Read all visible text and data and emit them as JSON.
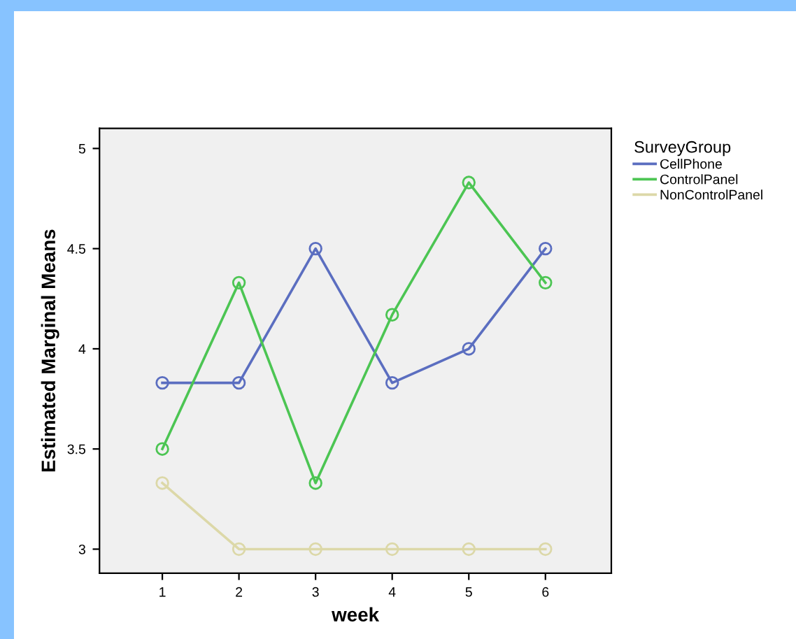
{
  "chart_data": {
    "type": "line",
    "xlabel": "week",
    "ylabel": "Estimated Marginal Means",
    "legend_title": "SurveyGroup",
    "x": [
      1,
      2,
      3,
      4,
      5,
      6
    ],
    "series": [
      {
        "name": "CellPhone",
        "color": "#5b6ec0",
        "values": [
          3.83,
          3.83,
          4.5,
          3.83,
          4.0,
          4.5
        ]
      },
      {
        "name": "ControlPanel",
        "color": "#4cc553",
        "values": [
          3.5,
          4.33,
          3.33,
          4.17,
          4.83,
          4.33
        ]
      },
      {
        "name": "NonControlPanel",
        "color": "#dcd8a8",
        "values": [
          3.33,
          3.0,
          3.0,
          3.0,
          3.0,
          3.0
        ]
      }
    ],
    "xlim": [
      0.18,
      6.86
    ],
    "xticks": [
      1,
      2,
      3,
      4,
      5,
      6
    ],
    "ylim": [
      2.88,
      5.1
    ],
    "yticks": [
      3,
      3.5,
      4,
      4.5,
      5
    ],
    "marker": "circle",
    "line_style": "solid",
    "grid": false,
    "legend": "top right"
  }
}
